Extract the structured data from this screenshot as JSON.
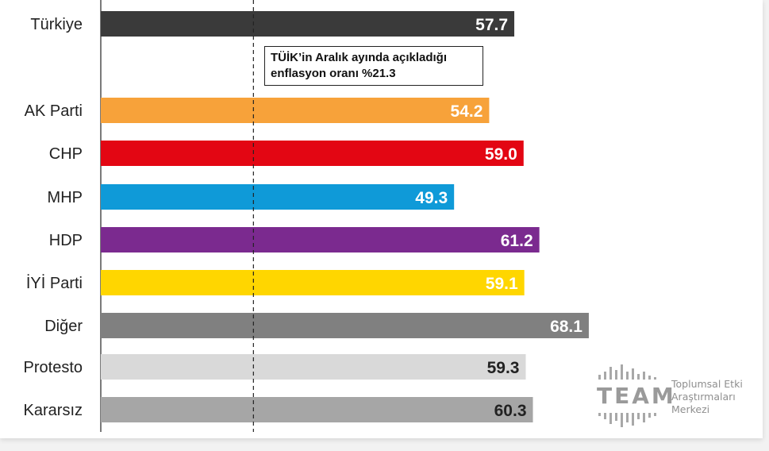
{
  "chart_data": {
    "type": "bar",
    "orientation": "horizontal",
    "categories": [
      "Türkiye",
      "AK Parti",
      "CHP",
      "MHP",
      "HDP",
      "İYİ Parti",
      "Diğer",
      "Protesto",
      "Kararsız"
    ],
    "values": [
      57.7,
      54.2,
      59.0,
      49.3,
      61.2,
      59.1,
      68.1,
      59.3,
      60.3
    ],
    "value_labels": [
      "57.7",
      "54.2",
      "59.0",
      "49.3",
      "61.2",
      "59.1",
      "68.1",
      "59.3",
      "60.3"
    ],
    "colors": [
      "#3a3a3a",
      "#f7a23a",
      "#e30613",
      "#0f9ad8",
      "#7b2a8f",
      "#ffd600",
      "#808080",
      "#d9d9d9",
      "#a6a6a6"
    ],
    "label_colors": [
      "#ffffff",
      "#ffffff",
      "#ffffff",
      "#ffffff",
      "#ffffff",
      "#ffffff",
      "#ffffff",
      "#222222",
      "#222222"
    ],
    "xlim": [
      0,
      100
    ],
    "reference_line": {
      "value": 21.3,
      "style": "dashed"
    },
    "annotation": {
      "line1": "TÜİK’in Aralık ayında açıkladığı",
      "line2": "enflasyon oranı %21.3"
    },
    "title": "",
    "xlabel": "",
    "ylabel": ""
  },
  "logo": {
    "word": "TEAM",
    "line1": "Toplumsal Etki",
    "line2": "Araştırmaları",
    "line3": "Merkezi"
  }
}
